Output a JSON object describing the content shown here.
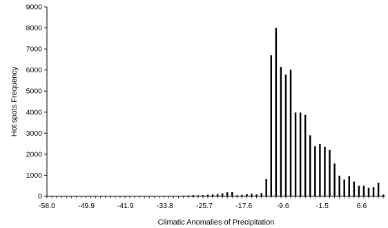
{
  "chart_data": {
    "type": "bar",
    "xlabel": "Climatic Anomalies of Precipitation",
    "ylabel": "Hot spots Frequency",
    "ylim": [
      0,
      9000
    ],
    "xlim": [
      -58.0,
      11.4
    ],
    "yticks": [
      "0",
      "1000",
      "2000",
      "3000",
      "4000",
      "5000",
      "6000",
      "7000",
      "8000",
      "9000"
    ],
    "xtick_labels": [
      "-58.0",
      "-49.9",
      "-41.9",
      "-33.8",
      "-25.7",
      "-17.6",
      "-9.6",
      "-1.5",
      "6.6"
    ],
    "bar_width": 0.35,
    "grid": false,
    "legend": "none",
    "color": "#000000",
    "x": [
      -58.0,
      -57.0,
      -56.0,
      -55.0,
      -54.0,
      -53.0,
      -52.0,
      -51.0,
      -50.0,
      -49.0,
      -48.0,
      -47.0,
      -46.0,
      -45.0,
      -44.0,
      -43.0,
      -42.0,
      -41.0,
      -40.0,
      -39.0,
      -38.0,
      -37.0,
      -36.0,
      -35.0,
      -34.0,
      -33.0,
      -32.0,
      -31.0,
      -30.0,
      -29.0,
      -28.0,
      -27.0,
      -26.0,
      -25.0,
      -24.0,
      -23.0,
      -22.0,
      -21.0,
      -20.0,
      -19.0,
      -18.0,
      -17.0,
      -16.0,
      -15.0,
      -14.0,
      -13.0,
      -12.0,
      -11.0,
      -10.0,
      -9.0,
      -8.0,
      -7.0,
      -6.0,
      -5.0,
      -4.0,
      -3.0,
      -2.0,
      -1.0,
      0.0,
      1.0,
      2.0,
      3.0,
      4.0,
      5.0,
      6.0,
      7.0,
      8.0,
      9.0,
      10.0,
      11.0
    ],
    "values": [
      0,
      0,
      10,
      0,
      0,
      0,
      0,
      0,
      10,
      0,
      0,
      0,
      0,
      0,
      0,
      0,
      0,
      0,
      0,
      0,
      0,
      0,
      0,
      10,
      10,
      20,
      20,
      20,
      30,
      40,
      60,
      50,
      60,
      80,
      90,
      100,
      140,
      190,
      200,
      50,
      70,
      100,
      120,
      90,
      150,
      820,
      6700,
      8000,
      6150,
      5780,
      6020,
      3980,
      3980,
      3870,
      2900,
      2380,
      2490,
      2360,
      2200,
      1560,
      980,
      800,
      960,
      700,
      500,
      500,
      400,
      430,
      640,
      80
    ]
  }
}
